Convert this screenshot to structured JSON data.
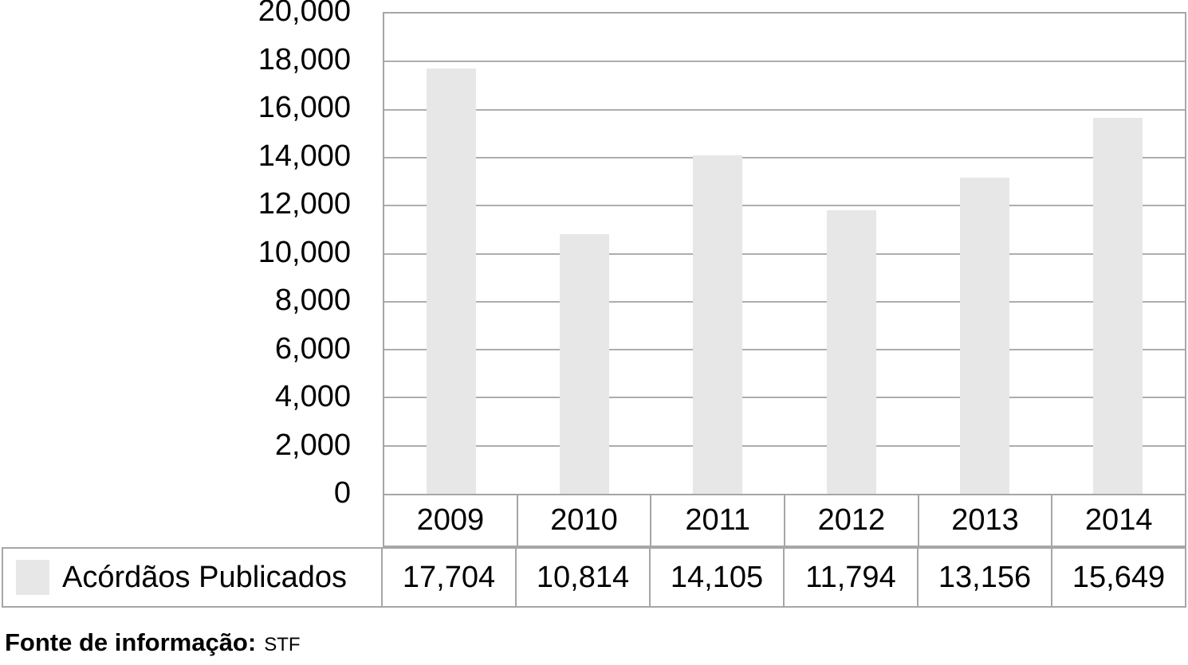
{
  "chart_data": {
    "type": "bar",
    "title": "",
    "categories": [
      "2009",
      "2010",
      "2011",
      "2012",
      "2013",
      "2014"
    ],
    "series": [
      {
        "name": "Acórdãos Publicados",
        "values": [
          17704,
          10814,
          14105,
          11794,
          13156,
          15649
        ]
      }
    ],
    "value_labels": [
      "17,704",
      "10,814",
      "14,105",
      "11,794",
      "13,156",
      "15,649"
    ],
    "xlabel": "",
    "ylabel": "",
    "ylim": [
      0,
      20000
    ],
    "ytick_interval": 2000,
    "ytick_labels": [
      "20,000",
      "18,000",
      "16,000",
      "14,000",
      "12,000",
      "10,000",
      "8,000",
      "6,000",
      "4,000",
      "2,000",
      "0"
    ],
    "grid": "horizontal",
    "legend_position": "bottom-table",
    "colors": {
      "bar": "#e7e7e7",
      "grid": "#adadad",
      "border": "#a6a6a6",
      "text": "#000000",
      "background": "#ffffff"
    }
  },
  "legend": {
    "label": "Acórdãos Publicados",
    "swatch_color": "#e7e7e7"
  },
  "footer": {
    "prefix": "Fonte de informação:",
    "source": "STF"
  }
}
